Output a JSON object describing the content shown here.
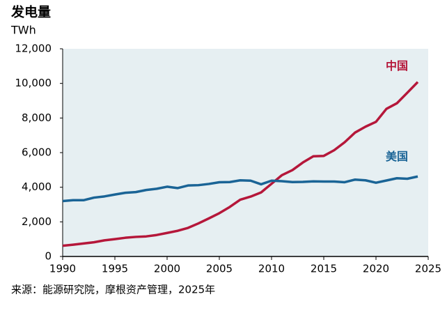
{
  "chart_data": {
    "type": "line",
    "title": "发电量",
    "y_label": "TWh",
    "source": "来源：能源研究院，摩根资产管理，2025年",
    "x": [
      1990,
      1991,
      1992,
      1993,
      1994,
      1995,
      1996,
      1997,
      1998,
      1999,
      2000,
      2001,
      2002,
      2003,
      2004,
      2005,
      2006,
      2007,
      2008,
      2009,
      2010,
      2011,
      2012,
      2013,
      2014,
      2015,
      2016,
      2017,
      2018,
      2019,
      2020,
      2021,
      2022,
      2023,
      2024
    ],
    "series": [
      {
        "name": "中国",
        "color": "#b5173a",
        "values": [
          620,
          680,
          750,
          820,
          930,
          1000,
          1080,
          1130,
          1160,
          1240,
          1360,
          1480,
          1650,
          1910,
          2200,
          2500,
          2860,
          3280,
          3460,
          3700,
          4200,
          4700,
          4990,
          5430,
          5790,
          5810,
          6140,
          6600,
          7160,
          7500,
          7780,
          8530,
          8850,
          9460,
          10080
        ]
      },
      {
        "name": "美国",
        "color": "#1a6496",
        "values": [
          3200,
          3250,
          3250,
          3400,
          3470,
          3580,
          3680,
          3720,
          3840,
          3910,
          4030,
          3950,
          4100,
          4120,
          4190,
          4290,
          4300,
          4400,
          4380,
          4170,
          4380,
          4350,
          4300,
          4310,
          4340,
          4330,
          4330,
          4290,
          4440,
          4400,
          4260,
          4390,
          4520,
          4490,
          4620
        ]
      }
    ],
    "xlim": [
      1990,
      2025
    ],
    "xticks": [
      1990,
      1995,
      2000,
      2005,
      2010,
      2015,
      2020,
      2025
    ],
    "ylim": [
      0,
      12000
    ],
    "yticks": [
      0,
      {
        "value": 2000,
        "label": "2,000"
      },
      {
        "value": 4000,
        "label": "4,000"
      },
      {
        "value": 6000,
        "label": "6,000"
      },
      {
        "value": 8000,
        "label": "8,000"
      },
      {
        "value": 10000,
        "label": "10,000"
      },
      {
        "value": 12000,
        "label": "12,000"
      }
    ]
  }
}
